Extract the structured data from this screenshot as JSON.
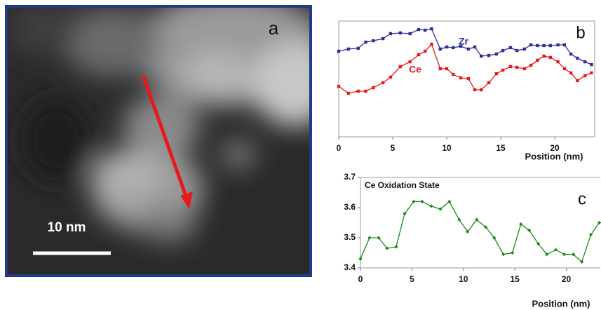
{
  "image_panel": {
    "label": "a",
    "scale_bar_label": "10 nm"
  },
  "chart_data": [
    {
      "type": "line",
      "panel_label": "b",
      "xlabel": "Position (nm)",
      "x": [
        0,
        0.9,
        1.8,
        2.5,
        3.2,
        4.1,
        4.8,
        5.7,
        6.6,
        7.4,
        8.0,
        8.6,
        9.4,
        10.0,
        10.6,
        11.3,
        12.0,
        12.6,
        13.2,
        13.9,
        14.6,
        15.2,
        15.9,
        16.5,
        17.2,
        17.8,
        18.4,
        19.0,
        19.6,
        20.3,
        20.9,
        21.5,
        22.1,
        22.8,
        23.4
      ],
      "series": [
        {
          "name": "Zr",
          "color": "#2e2e9c",
          "values": [
            73.9,
            75.8,
            76.4,
            81.8,
            83.0,
            84.8,
            89.1,
            89.7,
            89.1,
            92.7,
            92.1,
            93.3,
            75.8,
            77.6,
            77.0,
            78.2,
            75.8,
            77.6,
            69.7,
            70.3,
            71.5,
            74.5,
            77.0,
            74.5,
            75.8,
            79.4,
            78.8,
            78.8,
            78.8,
            79.4,
            79.4,
            71.5,
            67.9,
            64.8,
            62.4
          ]
        },
        {
          "name": "Ce",
          "color": "#e8191c",
          "values": [
            43.6,
            37.6,
            39.4,
            39.4,
            42.4,
            46.7,
            51.5,
            60.6,
            64.8,
            70.9,
            73.9,
            80.0,
            58.8,
            58.8,
            53.9,
            50.9,
            50.3,
            40.6,
            40.6,
            46.7,
            54.5,
            57.6,
            60.6,
            60.0,
            58.8,
            61.8,
            66.1,
            69.7,
            68.5,
            64.8,
            58.8,
            55.2,
            48.5,
            52.7,
            55.2
          ]
        }
      ],
      "xlim": [
        0,
        23.7
      ],
      "xticks": [
        0,
        5,
        10,
        15,
        20
      ],
      "ylim": [
        0,
        100
      ]
    },
    {
      "type": "line",
      "panel_label": "c",
      "title": "Ce Oxidation State",
      "xlabel": "Position (nm)",
      "x": [
        0,
        0.88,
        1.77,
        2.59,
        3.47,
        4.29,
        5.17,
        5.99,
        6.87,
        7.76,
        8.64,
        9.59,
        10.41,
        11.29,
        12.18,
        12.99,
        13.88,
        14.76,
        15.58,
        16.39,
        17.28,
        18.1,
        18.98,
        19.8,
        20.68,
        21.5,
        22.38,
        23.2
      ],
      "series": [
        {
          "name": null,
          "color": "#1a8a1a",
          "values": [
            3.43,
            3.5,
            3.5,
            3.465,
            3.47,
            3.58,
            3.62,
            3.62,
            3.605,
            3.595,
            3.62,
            3.56,
            3.52,
            3.56,
            3.535,
            3.5,
            3.445,
            3.45,
            3.545,
            3.525,
            3.48,
            3.445,
            3.46,
            3.445,
            3.445,
            3.42,
            3.51,
            3.55
          ]
        }
      ],
      "xlim": [
        0,
        23.3
      ],
      "xticks": [
        0,
        5,
        10,
        15,
        20
      ],
      "ylim": [
        3.4,
        3.7
      ],
      "yticks": [
        3.4,
        3.5,
        3.6,
        3.7
      ]
    }
  ]
}
